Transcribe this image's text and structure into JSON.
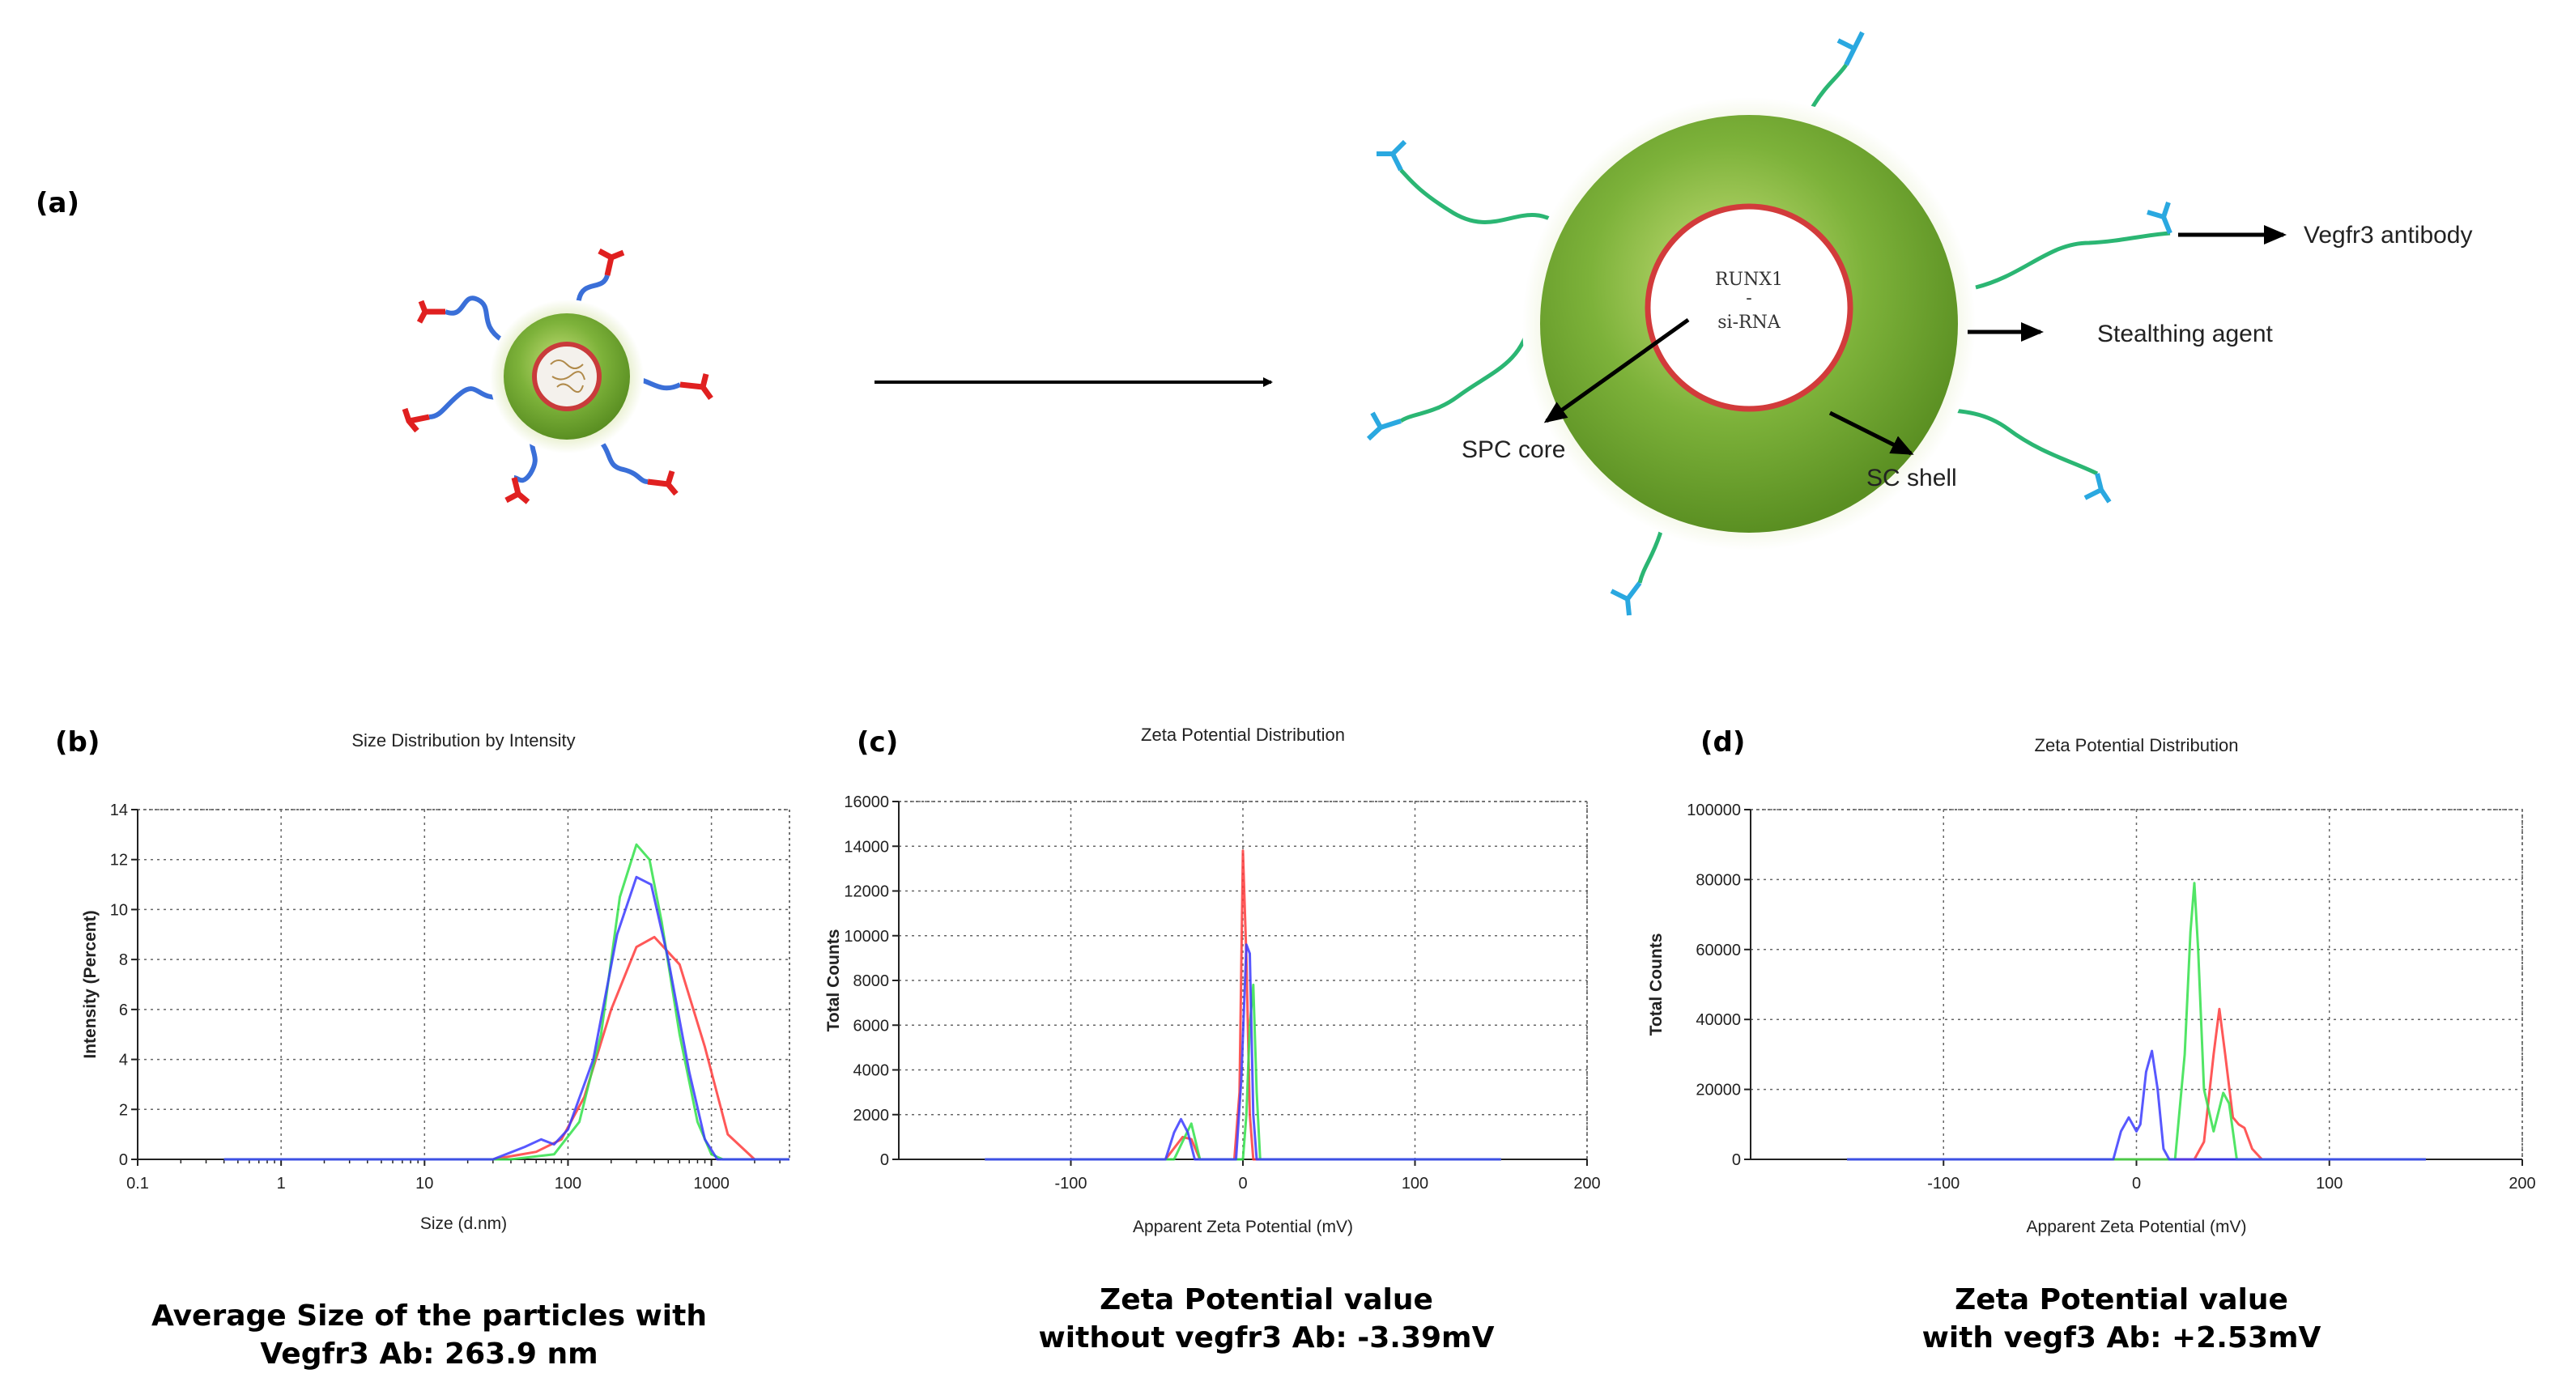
{
  "panel_labels": {
    "a": "(a)",
    "b": "(b)",
    "c": "(c)",
    "d": "(d)"
  },
  "schematic": {
    "core_text_1": "RUNX1",
    "core_text_2": "-",
    "core_text_3": "si-RNA",
    "label_antibody": "Vegfr3 antibody",
    "label_stealth": "Stealthing agent",
    "label_core": "SPC core",
    "label_shell": "SC shell"
  },
  "colors": {
    "shell_green": "#7db23a",
    "core_red": "#d23b3b",
    "linker_green": "#2bb673",
    "antibody_cyan": "#2aa8e0",
    "small_linker_blue": "#3a6fd8",
    "small_antibody_red": "#e02020",
    "series_red": "#ff3b3b",
    "series_green": "#33e04a",
    "series_blue": "#3b3bff"
  },
  "captions": {
    "b_line1": "Average Size of the particles with",
    "b_line2": "Vegfr3 Ab: 263.9 nm",
    "c_line1": "Zeta Potential value",
    "c_line2": "without vegfr3 Ab: -3.39mV",
    "d_line1": "Zeta Potential value",
    "d_line2": "with vegf3 Ab: +2.53mV"
  },
  "chart_data": [
    {
      "id": "b",
      "type": "line",
      "title": "Size Distribution by Intensity",
      "xlabel": "Size (d.nm)",
      "ylabel": "Intensity (Percent)",
      "xscale": "log",
      "xlim": [
        0.1,
        3500
      ],
      "ylim": [
        0,
        14
      ],
      "xticks": [
        0.1,
        1,
        10,
        100,
        1000
      ],
      "xtick_labels": [
        "0.1",
        "1",
        "10",
        "100",
        "1000"
      ],
      "yticks": [
        0,
        2,
        4,
        6,
        8,
        10,
        12,
        14
      ],
      "grid": true,
      "series": [
        {
          "color": "red",
          "x": [
            0.4,
            30,
            60,
            90,
            130,
            200,
            300,
            400,
            600,
            900,
            1300,
            2000,
            3500
          ],
          "y": [
            0,
            0,
            0.3,
            0.8,
            2.5,
            6.0,
            8.5,
            8.9,
            7.8,
            4.5,
            1.0,
            0,
            0
          ]
        },
        {
          "color": "green",
          "x": [
            0.4,
            40,
            80,
            120,
            170,
            230,
            300,
            370,
            450,
            600,
            800,
            1000,
            1200,
            3500
          ],
          "y": [
            0,
            0,
            0.2,
            1.5,
            5.0,
            10.5,
            12.6,
            12.0,
            9.5,
            5.0,
            1.5,
            0.2,
            0,
            0
          ]
        },
        {
          "color": "blue",
          "x": [
            0.4,
            30,
            50,
            65,
            80,
            100,
            150,
            220,
            300,
            380,
            500,
            700,
            900,
            1100,
            3500
          ],
          "y": [
            0,
            0,
            0.5,
            0.8,
            0.6,
            1.2,
            4.0,
            9.0,
            11.3,
            11.0,
            8.0,
            3.5,
            0.8,
            0,
            0
          ]
        }
      ]
    },
    {
      "id": "c",
      "type": "line",
      "title": "Zeta Potential Distribution",
      "xlabel": "Apparent Zeta Potential (mV)",
      "ylabel": "Total Counts",
      "xlim": [
        -200,
        200
      ],
      "ylim": [
        0,
        16000
      ],
      "xticks": [
        -100,
        0,
        100,
        200
      ],
      "yticks": [
        0,
        2000,
        4000,
        6000,
        8000,
        10000,
        12000,
        14000,
        16000
      ],
      "grid": true,
      "series": [
        {
          "color": "red",
          "x": [
            -150,
            -45,
            -40,
            -35,
            -30,
            -25,
            -5,
            -2,
            0,
            2,
            4,
            6,
            150
          ],
          "y": [
            0,
            0,
            500,
            1000,
            900,
            0,
            0,
            3000,
            13800,
            9000,
            2000,
            0,
            0
          ]
        },
        {
          "color": "green",
          "x": [
            -150,
            -40,
            -35,
            -30,
            -25,
            0,
            2,
            4,
            6,
            8,
            10,
            150
          ],
          "y": [
            0,
            0,
            800,
            1600,
            0,
            0,
            2000,
            6000,
            7800,
            3000,
            0,
            0
          ]
        },
        {
          "color": "blue",
          "x": [
            -150,
            -45,
            -40,
            -36,
            -32,
            -28,
            -4,
            -1,
            2,
            4,
            6,
            8,
            150
          ],
          "y": [
            0,
            0,
            1200,
            1800,
            1200,
            0,
            0,
            3500,
            9600,
            9200,
            2000,
            0,
            0
          ]
        }
      ]
    },
    {
      "id": "d",
      "type": "line",
      "title": "Zeta Potential Distribution",
      "xlabel": "Apparent Zeta Potential (mV)",
      "ylabel": "Total Counts",
      "xlim": [
        -200,
        200
      ],
      "ylim": [
        0,
        100000
      ],
      "xticks": [
        -100,
        0,
        100,
        200
      ],
      "yticks": [
        0,
        20000,
        40000,
        60000,
        80000,
        100000
      ],
      "grid": true,
      "series": [
        {
          "color": "red",
          "x": [
            -150,
            30,
            35,
            40,
            43,
            46,
            50,
            53,
            56,
            60,
            65,
            150
          ],
          "y": [
            0,
            0,
            5000,
            30000,
            43000,
            30000,
            12000,
            10000,
            9000,
            3000,
            0,
            0
          ]
        },
        {
          "color": "green",
          "x": [
            -150,
            20,
            25,
            28,
            30,
            32,
            35,
            40,
            45,
            48,
            52,
            150
          ],
          "y": [
            0,
            0,
            30000,
            65000,
            79000,
            60000,
            20000,
            8000,
            19000,
            16000,
            0,
            0
          ]
        },
        {
          "color": "blue",
          "x": [
            -150,
            -12,
            -8,
            -4,
            0,
            2,
            5,
            8,
            11,
            14,
            17,
            150
          ],
          "y": [
            0,
            0,
            8000,
            12000,
            8000,
            10000,
            25000,
            31000,
            20000,
            3000,
            0,
            0
          ]
        }
      ]
    }
  ]
}
